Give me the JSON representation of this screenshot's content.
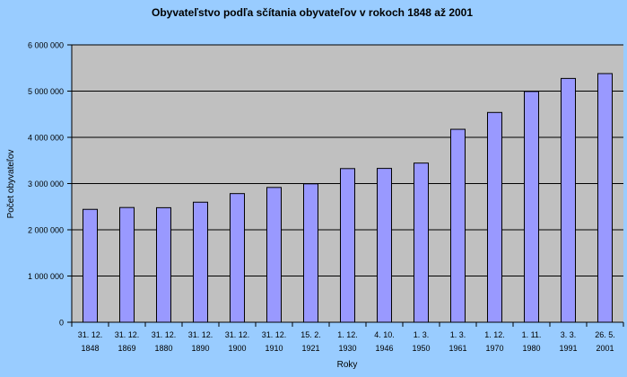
{
  "chart_data": {
    "type": "bar",
    "title": "Obyvateľstvo podľa sčítania obyvateľov v rokoch 1848 až 2001",
    "xlabel": "Roky",
    "ylabel": "Počet obyvateľov",
    "ylim": [
      0,
      6000000
    ],
    "yticks": [
      0,
      1000000,
      2000000,
      3000000,
      4000000,
      5000000,
      6000000
    ],
    "ytick_labels": [
      "0",
      "1 000 000",
      "2 000 000",
      "3 000 000",
      "4 000 000",
      "5 000 000",
      "6 000 000"
    ],
    "grid": true,
    "legend": "none",
    "categories": [
      [
        "31. 12.",
        "1848"
      ],
      [
        "31. 12.",
        "1869"
      ],
      [
        "31. 12.",
        "1880"
      ],
      [
        "31. 12.",
        "1890"
      ],
      [
        "31. 12.",
        "1900"
      ],
      [
        "31. 12.",
        "1910"
      ],
      [
        "15. 2.",
        "1921"
      ],
      [
        "1. 12.",
        "1930"
      ],
      [
        "4. 10.",
        "1946"
      ],
      [
        "1. 3.",
        "1950"
      ],
      [
        "1. 3.",
        "1961"
      ],
      [
        "1. 12.",
        "1970"
      ],
      [
        "1. 11.",
        "1980"
      ],
      [
        "3. 3.",
        "1991"
      ],
      [
        "26. 5.",
        "2001"
      ]
    ],
    "values": [
      2442000,
      2482000,
      2478000,
      2597000,
      2783000,
      2916000,
      2994000,
      3324000,
      3328000,
      3443000,
      4174000,
      4538000,
      4992000,
      5274000,
      5379000
    ],
    "colors": {
      "background": "#99ccff",
      "plot_area": "#c0c0c0",
      "bar_fill": "#9999ff",
      "bar_stroke": "#000000",
      "grid": "#000000"
    }
  }
}
